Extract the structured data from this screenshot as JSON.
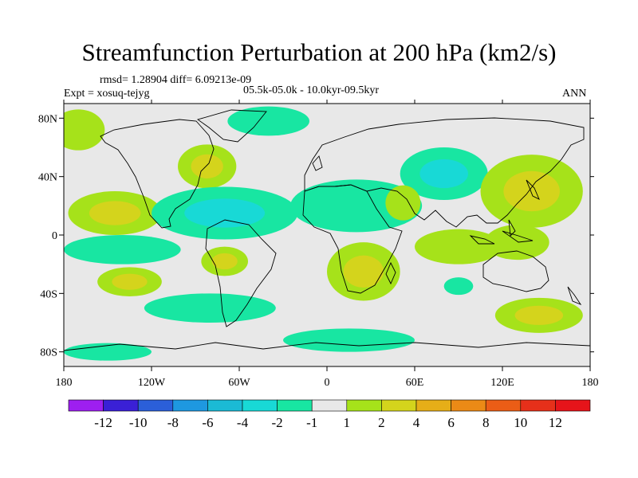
{
  "chart_data": {
    "type": "heatmap",
    "title": "Streamfunction Perturbation at 200 hPa (km2/s)",
    "stats_line": "rmsd= 1.28904 diff= 6.09213e-09",
    "expt_label": "Expt = xosuq-tejyg",
    "period_label": "05.5k-05.0k - 10.0kyr-09.5kyr",
    "season_label": "ANN",
    "x_ticks": [
      "180",
      "120W",
      "60W",
      "0",
      "60E",
      "120E",
      "180"
    ],
    "y_ticks": [
      "80N",
      "40N",
      "0",
      "40S",
      "80S"
    ],
    "lon_range": [
      -180,
      180
    ],
    "lat_range": [
      -90,
      90
    ],
    "colorbar": {
      "levels": [
        "-12",
        "-10",
        "-8",
        "-6",
        "-4",
        "-2",
        "-1",
        "1",
        "2",
        "4",
        "6",
        "8",
        "10",
        "12"
      ],
      "colors": [
        "#9e1ff0",
        "#3a20d6",
        "#2b5fd9",
        "#1e98e0",
        "#1bbad5",
        "#18d9d6",
        "#18e6a2",
        "#e8e8e8",
        "#a6e21a",
        "#d4d41c",
        "#e6ae18",
        "#eb8a16",
        "#eb5d16",
        "#e6301a",
        "#e6141a"
      ]
    },
    "regions": [
      {
        "name": "n-pacific-east-positive",
        "lon": -170,
        "lat": 72,
        "rx": 18,
        "ry": 14,
        "level": 1
      },
      {
        "name": "arctic-america-negative",
        "lon": -40,
        "lat": 78,
        "rx": 28,
        "ry": 10,
        "level": -1
      },
      {
        "name": "n-america-east-positive",
        "lon": -82,
        "lat": 47,
        "rx": 20,
        "ry": 15,
        "level": 2
      },
      {
        "name": "central-pacific-ne-positive",
        "lon": -145,
        "lat": 15,
        "rx": 32,
        "ry": 15,
        "level": 2
      },
      {
        "name": "caribbean-atlantic-negative",
        "lon": -70,
        "lat": 15,
        "rx": 50,
        "ry": 18,
        "level": -2
      },
      {
        "name": "n-africa-negative",
        "lon": 20,
        "lat": 20,
        "rx": 45,
        "ry": 18,
        "level": -1
      },
      {
        "name": "eurasia-negative",
        "lon": 80,
        "lat": 42,
        "rx": 30,
        "ry": 18,
        "level": -2
      },
      {
        "name": "arabia-positive",
        "lon": 52,
        "lat": 22,
        "rx": 12,
        "ry": 12,
        "level": 1
      },
      {
        "name": "east-asia-pacific-positive",
        "lon": 140,
        "lat": 30,
        "rx": 35,
        "ry": 25,
        "level": 2
      },
      {
        "name": "indian-ocean-positive",
        "lon": 90,
        "lat": -8,
        "rx": 30,
        "ry": 12,
        "level": 1
      },
      {
        "name": "maritime-continent-positive",
        "lon": 130,
        "lat": -5,
        "rx": 22,
        "ry": 12,
        "level": 1
      },
      {
        "name": "s-pacific-equator-negative",
        "lon": -140,
        "lat": -10,
        "rx": 40,
        "ry": 10,
        "level": -1
      },
      {
        "name": "s-america-positive",
        "lon": -70,
        "lat": -18,
        "rx": 16,
        "ry": 10,
        "level": 2
      },
      {
        "name": "south-africa-positive",
        "lon": 25,
        "lat": -25,
        "rx": 25,
        "ry": 20,
        "level": 2
      },
      {
        "name": "s-pacific-positive",
        "lon": -135,
        "lat": -32,
        "rx": 22,
        "ry": 10,
        "level": 2
      },
      {
        "name": "s-atlantic-negative",
        "lon": -80,
        "lat": -50,
        "rx": 45,
        "ry": 10,
        "level": -1
      },
      {
        "name": "s-indian-ocean-negative",
        "lon": 90,
        "lat": -35,
        "rx": 10,
        "ry": 6,
        "level": -1
      },
      {
        "name": "s-indian-ocean-positive",
        "lon": 145,
        "lat": -55,
        "rx": 30,
        "ry": 12,
        "level": 2
      },
      {
        "name": "antarctic-atlantic-negative",
        "lon": 15,
        "lat": -72,
        "rx": 45,
        "ry": 8,
        "level": -1
      },
      {
        "name": "antarctic-pacific-negative",
        "lon": -150,
        "lat": -80,
        "rx": 30,
        "ry": 6,
        "level": -1
      }
    ]
  }
}
